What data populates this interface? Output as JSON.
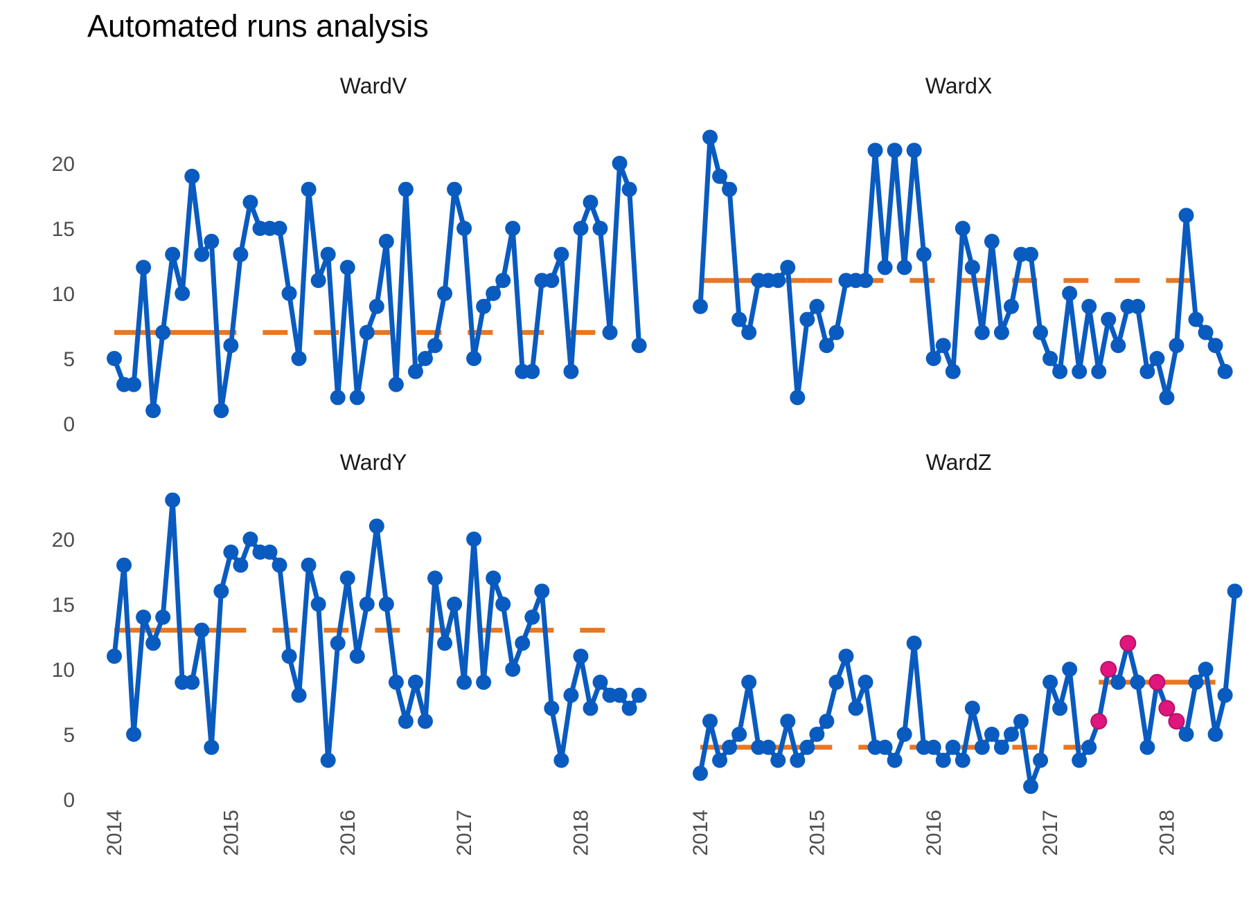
{
  "chart_data": {
    "type": "line",
    "title": "Automated runs analysis",
    "xlabel": "",
    "ylabel": "",
    "ylim": [
      0,
      23.5
    ],
    "y_ticks": [
      "0",
      "5",
      "10",
      "15",
      "20"
    ],
    "x_ticks": [
      "2014",
      "2015",
      "2016",
      "2017",
      "2018"
    ],
    "x_start": "2014-01",
    "grid": false,
    "legend": "none",
    "colors": {
      "line": "#0a5bbf",
      "median": "#e87722",
      "highlight": "#e0157e"
    },
    "panels": [
      {
        "name": "WardV",
        "values": [
          5,
          3,
          3,
          12,
          1,
          7,
          13,
          10,
          19,
          13,
          14,
          1,
          6,
          13,
          17,
          15,
          15,
          15,
          10,
          5,
          18,
          11,
          13,
          2,
          12,
          2,
          7,
          9,
          14,
          3,
          18,
          4,
          5,
          6,
          10,
          18,
          15,
          5,
          9,
          10,
          11,
          15,
          4,
          4,
          11,
          11,
          13,
          4,
          15,
          17,
          15,
          7,
          20,
          18,
          6
        ],
        "median": 7,
        "median_solid_until": 10,
        "median_end": 51,
        "highlight_indices": []
      },
      {
        "name": "WardX",
        "values": [
          9,
          22,
          19,
          18,
          8,
          7,
          11,
          11,
          11,
          12,
          2,
          8,
          9,
          6,
          7,
          11,
          11,
          11,
          21,
          12,
          21,
          12,
          21,
          13,
          5,
          6,
          4,
          15,
          12,
          7,
          14,
          7,
          9,
          13,
          13,
          7,
          5,
          4,
          10,
          4,
          9,
          4,
          8,
          6,
          9,
          9,
          4,
          5,
          2,
          6,
          16,
          8,
          7,
          6,
          4
        ],
        "median": 11,
        "median_solid_until": 11,
        "median_end": 52,
        "highlight_indices": []
      },
      {
        "name": "WardY",
        "values": [
          11,
          18,
          5,
          14,
          12,
          14,
          23,
          9,
          9,
          13,
          4,
          16,
          19,
          18,
          20,
          19,
          19,
          18,
          11,
          8,
          18,
          15,
          3,
          12,
          17,
          11,
          15,
          21,
          15,
          9,
          6,
          9,
          6,
          17,
          12,
          15,
          9,
          20,
          9,
          17,
          15,
          10,
          12,
          14,
          16,
          7,
          3,
          8,
          11,
          7,
          9,
          8,
          8,
          7,
          8
        ],
        "median": 13,
        "median_solid_until": 11,
        "median_end": 52,
        "highlight_indices": []
      },
      {
        "name": "WardZ",
        "values": [
          2,
          6,
          3,
          4,
          5,
          9,
          4,
          4,
          3,
          6,
          3,
          4,
          5,
          6,
          9,
          11,
          7,
          9,
          4,
          4,
          3,
          5,
          12,
          4,
          4,
          3,
          4,
          3,
          7,
          4,
          5,
          4,
          5,
          6,
          1,
          3,
          9,
          7,
          10,
          3,
          4,
          6,
          10,
          9,
          12,
          9,
          4,
          9,
          7,
          6,
          5,
          9,
          10,
          5,
          8,
          16
        ],
        "median": 4,
        "median_solid_until": 11,
        "median_end": 41,
        "median2": 9,
        "median2_start": 41,
        "median2_end": 53,
        "highlight_indices": [
          41,
          42,
          44,
          47,
          48,
          49
        ]
      }
    ]
  }
}
